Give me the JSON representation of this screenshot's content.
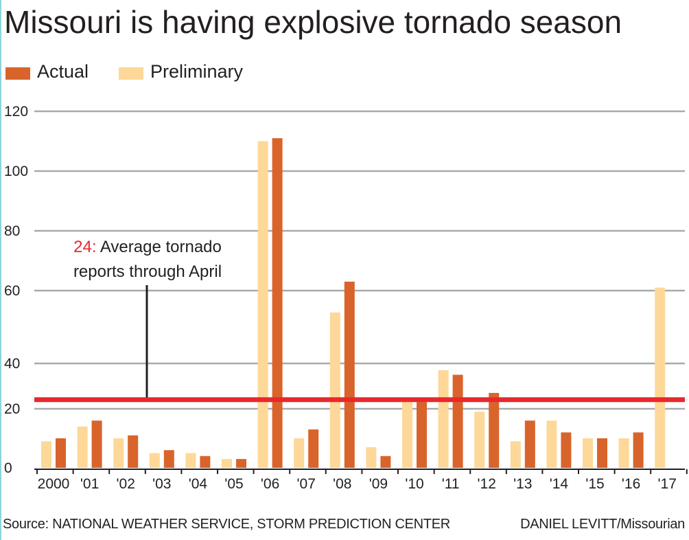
{
  "title": "Missouri is having explosive tornado season",
  "legend": [
    {
      "label": "Actual",
      "color": "#d9642b"
    },
    {
      "label": "Preliminary",
      "color": "#fdd898"
    }
  ],
  "source": "Source: NATIONAL WEATHER SERVICE, STORM PREDICTION CENTER",
  "credit": "DANIEL LEVITT/Missourian",
  "chart_data": {
    "type": "bar",
    "title": "Missouri is having explosive tornado season",
    "categories": [
      "2000",
      "'01",
      "'02",
      "'03",
      "'04",
      "'05",
      "'06",
      "'07",
      "'08",
      "'09",
      "'10",
      "'11",
      "'12",
      "'13",
      "'14",
      "'15",
      "'16",
      "'17"
    ],
    "series": [
      {
        "name": "Preliminary",
        "color": "#fdd898",
        "values": [
          9,
          14,
          10,
          5,
          5,
          3,
          110,
          10,
          54,
          7,
          23,
          37,
          19,
          9,
          16,
          10,
          10,
          61
        ]
      },
      {
        "name": "Actual",
        "color": "#d9642b",
        "values": [
          10,
          16,
          11,
          6,
          4,
          3,
          111,
          13,
          63,
          4,
          23,
          35,
          27,
          16,
          12,
          10,
          12,
          null
        ]
      }
    ],
    "y_ticks": [
      0,
      20,
      40,
      60,
      80,
      100,
      120
    ],
    "ylim": [
      0,
      120
    ],
    "grid": true,
    "legend_position": "top-left",
    "reference_line": {
      "value": 24,
      "color": "#e8282c",
      "label_value": "24:",
      "label_line1": "Average tornado",
      "label_line2": "reports through April"
    }
  }
}
